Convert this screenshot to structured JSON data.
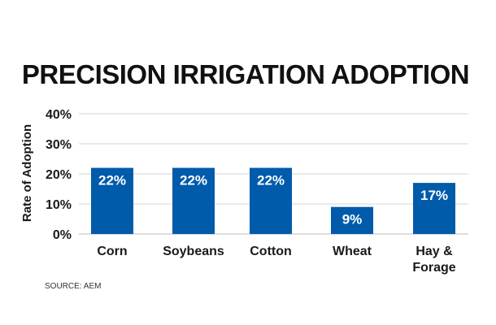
{
  "chart_data": {
    "type": "bar",
    "title": "PRECISION IRRIGATION ADOPTION",
    "ylabel": "Rate of Adoption",
    "xlabel": "",
    "categories": [
      "Corn",
      "Soybeans",
      "Cotton",
      "Wheat",
      "Hay & Forage"
    ],
    "values": [
      22,
      22,
      22,
      9,
      17
    ],
    "data_labels": [
      "22%",
      "22%",
      "22%",
      "9%",
      "17%"
    ],
    "ylim": [
      0,
      40
    ],
    "yticks": [
      0,
      10,
      20,
      30,
      40
    ],
    "ytick_labels": [
      "0%",
      "10%",
      "20%",
      "30%",
      "40%"
    ],
    "grid": true,
    "legend": "none",
    "bar_color": "#005BAA",
    "source": "SOURCE: AEM"
  }
}
